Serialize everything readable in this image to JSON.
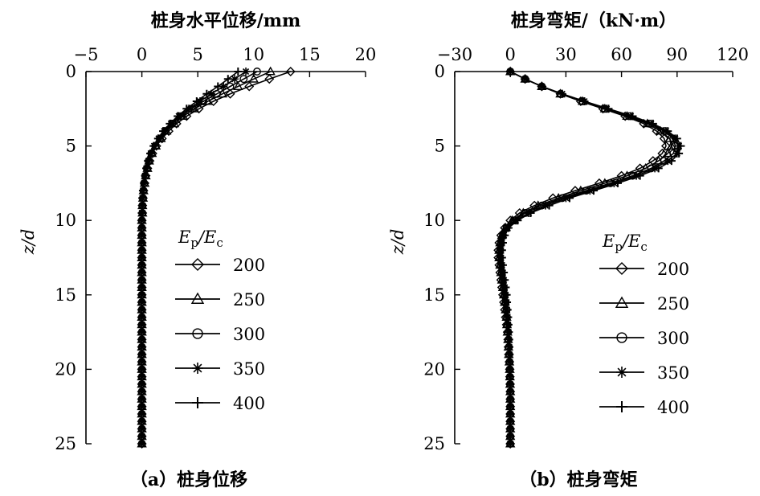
{
  "chart_data": [
    {
      "type": "line",
      "title": "桩身水平位移/mm",
      "caption": "（a）桩身位移",
      "ylabel": "z/d",
      "xlim": [
        -5,
        20
      ],
      "ylim": [
        0,
        25
      ],
      "xticks": [
        "−5",
        "0",
        "5",
        "10",
        "15",
        "20"
      ],
      "yticks": [
        "0",
        "5",
        "10",
        "15",
        "20",
        "25"
      ],
      "legend_title": "Ep/Ec",
      "legend_position": "right-middle",
      "y": [
        0,
        0.5,
        1,
        1.5,
        2,
        2.5,
        3,
        3.5,
        4,
        4.5,
        5,
        5.5,
        6,
        6.5,
        7,
        7.5,
        8,
        8.5,
        9,
        9.5,
        10,
        10.5,
        11,
        11.5,
        12,
        12.5,
        13,
        13.5,
        14,
        14.5,
        15,
        15.5,
        16,
        16.5,
        17,
        17.5,
        18,
        18.5,
        19,
        19.5,
        20,
        20.5,
        21,
        21.5,
        22,
        22.5,
        23,
        23.5,
        24,
        24.5,
        25
      ],
      "series": [
        {
          "name": "200",
          "marker": "diamond",
          "x": [
            13.3,
            11.4,
            9.6,
            7.9,
            6.4,
            5.1,
            4.0,
            3.1,
            2.4,
            1.8,
            1.3,
            0.95,
            0.7,
            0.5,
            0.35,
            0.25,
            0.15,
            0.1,
            0.05,
            0.05,
            0.0,
            0.0,
            0.0,
            0.0,
            0.0,
            0.0,
            0.0,
            0.0,
            0.0,
            0.0,
            0.0,
            0.0,
            0.0,
            0.0,
            0.0,
            0.0,
            0.0,
            0.0,
            0.0,
            0.0,
            0.0,
            0.0,
            0.0,
            0.0,
            0.0,
            0.0,
            0.0,
            0.0,
            0.0,
            0.0,
            0.0
          ]
        },
        {
          "name": "250",
          "marker": "triangle",
          "x": [
            11.5,
            10.0,
            8.6,
            7.2,
            5.9,
            4.7,
            3.7,
            2.9,
            2.2,
            1.7,
            1.25,
            0.9,
            0.65,
            0.5,
            0.35,
            0.25,
            0.15,
            0.1,
            0.05,
            0.05,
            0.0,
            0.0,
            0.0,
            0.0,
            0.0,
            0.0,
            0.0,
            0.0,
            0.0,
            0.0,
            0.0,
            0.0,
            0.0,
            0.0,
            0.0,
            0.0,
            0.0,
            0.0,
            0.0,
            0.0,
            0.0,
            0.0,
            0.0,
            0.0,
            0.0,
            0.0,
            0.0,
            0.0,
            0.0,
            0.0,
            0.0
          ]
        },
        {
          "name": "300",
          "marker": "circle",
          "x": [
            10.3,
            9.1,
            7.9,
            6.7,
            5.5,
            4.4,
            3.5,
            2.7,
            2.1,
            1.6,
            1.2,
            0.85,
            0.6,
            0.45,
            0.3,
            0.2,
            0.15,
            0.1,
            0.05,
            0.05,
            0.0,
            0.0,
            0.0,
            0.0,
            0.0,
            0.0,
            0.0,
            0.0,
            0.0,
            0.0,
            0.0,
            0.0,
            0.0,
            0.0,
            0.0,
            0.0,
            0.0,
            0.0,
            0.0,
            0.0,
            0.0,
            0.0,
            0.0,
            0.0,
            0.0,
            0.0,
            0.0,
            0.0,
            0.0,
            0.0,
            0.0
          ]
        },
        {
          "name": "350",
          "marker": "asterisk",
          "x": [
            9.3,
            8.3,
            7.3,
            6.2,
            5.2,
            4.2,
            3.3,
            2.6,
            2.0,
            1.5,
            1.1,
            0.8,
            0.6,
            0.4,
            0.3,
            0.2,
            0.1,
            0.05,
            0.05,
            0.0,
            0.0,
            0.0,
            0.0,
            0.0,
            0.0,
            0.0,
            0.0,
            0.0,
            0.0,
            0.0,
            0.0,
            0.0,
            0.0,
            0.0,
            0.0,
            0.0,
            0.0,
            0.0,
            0.0,
            0.0,
            0.0,
            0.0,
            0.0,
            0.0,
            0.0,
            0.0,
            0.0,
            0.0,
            0.0,
            0.0,
            0.0
          ]
        },
        {
          "name": "400",
          "marker": "plus",
          "x": [
            8.6,
            7.7,
            6.8,
            5.8,
            4.9,
            4.0,
            3.2,
            2.5,
            1.9,
            1.45,
            1.05,
            0.75,
            0.55,
            0.4,
            0.3,
            0.2,
            0.1,
            0.05,
            0.05,
            0.0,
            0.0,
            0.0,
            0.0,
            0.0,
            0.0,
            0.0,
            0.0,
            0.0,
            0.0,
            0.0,
            0.0,
            0.0,
            0.0,
            0.0,
            0.0,
            0.0,
            0.0,
            0.0,
            0.0,
            0.0,
            0.0,
            0.0,
            0.0,
            0.0,
            0.0,
            0.0,
            0.0,
            0.0,
            0.0,
            0.0,
            0.0
          ]
        }
      ]
    },
    {
      "type": "line",
      "title": "桩身弯矩/（kN·m）",
      "caption": "（b）桩身弯矩",
      "ylabel": "z/d",
      "xlim": [
        -30,
        120
      ],
      "ylim": [
        0,
        25
      ],
      "xticks": [
        "−30",
        "0",
        "30",
        "60",
        "90",
        "120"
      ],
      "yticks": [
        "0",
        "5",
        "10",
        "15",
        "20",
        "25"
      ],
      "legend_title": "Ep/Ec",
      "legend_position": "right-middle",
      "y": [
        0,
        0.5,
        1,
        1.5,
        2,
        2.5,
        3,
        3.5,
        4,
        4.5,
        5,
        5.5,
        6,
        6.5,
        7,
        7.5,
        8,
        8.5,
        9,
        9.5,
        10,
        10.5,
        11,
        11.5,
        12,
        12.5,
        13,
        13.5,
        14,
        14.5,
        15,
        15.5,
        16,
        16.5,
        17,
        17.5,
        18,
        18.5,
        19,
        19.5,
        20,
        20.5,
        21,
        21.5,
        22,
        22.5,
        23,
        23.5,
        24,
        24.5,
        25
      ],
      "series": [
        {
          "name": "200",
          "marker": "diamond",
          "x": [
            0,
            8,
            17,
            27,
            38,
            50,
            62,
            72,
            79,
            83,
            84,
            82,
            77,
            70,
            60,
            48,
            35,
            23,
            13,
            5,
            0,
            -3,
            -5,
            -6,
            -6.5,
            -6.5,
            -6,
            -5.5,
            -5,
            -4.5,
            -4,
            -3.5,
            -3,
            -2.5,
            -2,
            -1.5,
            -1.2,
            -1,
            -0.8,
            -0.5,
            -0.3,
            -0.2,
            -0.1,
            0,
            0,
            0,
            0,
            0,
            0,
            0,
            0
          ]
        },
        {
          "name": "250",
          "marker": "triangle",
          "x": [
            0,
            8,
            17,
            27,
            39,
            51,
            63,
            74,
            81,
            86,
            87,
            85,
            80,
            73,
            63,
            51,
            38,
            26,
            15,
            7,
            1,
            -2.5,
            -4.5,
            -5.5,
            -6,
            -6,
            -5.5,
            -5,
            -4.5,
            -4,
            -3.5,
            -3,
            -2.5,
            -2,
            -1.8,
            -1.5,
            -1.2,
            -1,
            -0.8,
            -0.5,
            -0.3,
            -0.2,
            -0.1,
            0,
            0,
            0,
            0,
            0,
            0,
            0,
            0
          ]
        },
        {
          "name": "300",
          "marker": "circle",
          "x": [
            0,
            8,
            17,
            27,
            39,
            51,
            64,
            75,
            83,
            88,
            89,
            88,
            83,
            76,
            66,
            54,
            41,
            28,
            17,
            8,
            2,
            -2,
            -4,
            -5,
            -5.5,
            -5.5,
            -5,
            -4.5,
            -4,
            -3.5,
            -3,
            -2.5,
            -2,
            -1.8,
            -1.5,
            -1.2,
            -1,
            -0.8,
            -0.6,
            -0.4,
            -0.3,
            -0.2,
            -0.1,
            0,
            0,
            0,
            0,
            0,
            0,
            0,
            0
          ]
        },
        {
          "name": "350",
          "marker": "asterisk",
          "x": [
            0,
            8,
            17,
            28,
            40,
            52,
            65,
            76,
            84,
            89,
            91,
            90,
            85,
            78,
            68,
            56,
            43,
            30,
            19,
            10,
            3,
            -1.5,
            -3.5,
            -4.5,
            -5,
            -5,
            -4.5,
            -4,
            -3.5,
            -3,
            -2.5,
            -2,
            -1.8,
            -1.5,
            -1.2,
            -1,
            -0.8,
            -0.6,
            -0.5,
            -0.4,
            -0.3,
            -0.2,
            -0.1,
            0,
            0,
            0,
            0,
            0,
            0,
            0,
            0
          ]
        },
        {
          "name": "400",
          "marker": "plus",
          "x": [
            0,
            8,
            17,
            28,
            40,
            53,
            66,
            77,
            85,
            90,
            92,
            91,
            87,
            80,
            70,
            58,
            45,
            32,
            21,
            11,
            4,
            -1,
            -3,
            -4,
            -4.5,
            -4.5,
            -4,
            -3.5,
            -3,
            -2.5,
            -2,
            -1.8,
            -1.5,
            -1.2,
            -1,
            -0.8,
            -0.6,
            -0.5,
            -0.4,
            -0.3,
            -0.2,
            -0.1,
            0,
            0,
            0,
            0,
            0,
            0,
            0,
            0,
            0
          ]
        }
      ]
    }
  ]
}
